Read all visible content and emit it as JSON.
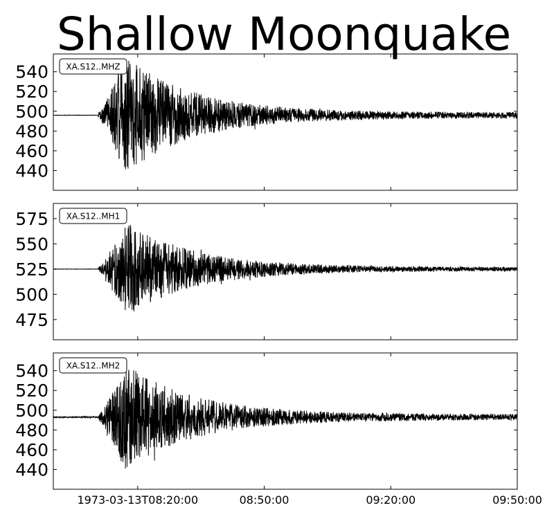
{
  "chart_data": {
    "type": "line",
    "title": "Shallow Moonquake",
    "xlabel": "",
    "x_ticks": [
      "1973-03-13T08:20:00",
      "08:50:00",
      "09:20:00",
      "09:50:00"
    ],
    "x_range": [
      "1973-03-13T08:00:00",
      "1973-03-13T09:50:00"
    ],
    "panels": [
      {
        "label": "XA.S12..MHZ",
        "ylim": [
          420,
          558
        ],
        "yticks": [
          440,
          460,
          480,
          500,
          520,
          540
        ],
        "baseline": 496,
        "onset": "1973-03-13T08:10:40",
        "peak_time": "1973-03-13T08:17:00",
        "amplitude_max": 60,
        "amplitude_tail": 3
      },
      {
        "label": "XA.S12..MH1",
        "ylim": [
          455,
          590
        ],
        "yticks": [
          475,
          500,
          525,
          550,
          575
        ],
        "baseline": 525,
        "onset": "1973-03-13T08:10:40",
        "peak_time": "1973-03-13T08:17:00",
        "amplitude_max": 48,
        "amplitude_tail": 2
      },
      {
        "label": "XA.S12..MH2",
        "ylim": [
          420,
          558
        ],
        "yticks": [
          440,
          460,
          480,
          500,
          520,
          540
        ],
        "baseline": 493,
        "onset": "1973-03-13T08:10:40",
        "peak_time": "1973-03-13T08:17:00",
        "amplitude_max": 55,
        "amplitude_tail": 3
      }
    ],
    "grid": false,
    "colors": {
      "trace": "#000000",
      "axes": "#000000",
      "background": "#ffffff"
    }
  }
}
